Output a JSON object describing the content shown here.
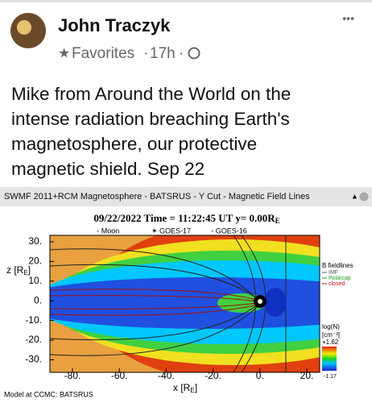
{
  "post": {
    "author": "John Traczyk",
    "audience": "Favorites",
    "time": "17h",
    "menu": "•••",
    "text_lines": [
      "Mike from Around the World on the",
      "intense radiation breaching Earth's",
      "magnetosphere, our protective",
      "magnetic shield. Sep 22"
    ]
  },
  "image": {
    "window_title": "SWMF 2011+RCM Magnetosphere - BATSRUS - Y Cut - Magnetic Field Lines",
    "plot_title": {
      "main": "09/22/2022 Time = 11:22:45 UT y= 0.00R",
      "sub": "E"
    },
    "markers": [
      "◦ Moon",
      "✶ GOES-17",
      "◦ GOES-16"
    ],
    "y_label": {
      "main": "z [R",
      "sub": "E",
      "end": "]"
    },
    "x_label": {
      "main": "x [R",
      "sub": "E",
      "end": "]"
    },
    "y_ticks": [
      "30.",
      "20.",
      "10.",
      "0.",
      "-10.",
      "-20.",
      "-30."
    ],
    "x_ticks": [
      "-80.",
      "-60.",
      "-40.",
      "-20.",
      "0.",
      "20."
    ],
    "legend": {
      "title": "B fieldlines",
      "items": [
        "IMF",
        "Polarcap",
        "closed"
      ]
    },
    "colorbar": {
      "label": "log(N)",
      "unit": "[cm⁻³]",
      "max": "+1.62",
      "min": "-1.17"
    },
    "footer": "Model at CCMC: BATSRUS"
  }
}
